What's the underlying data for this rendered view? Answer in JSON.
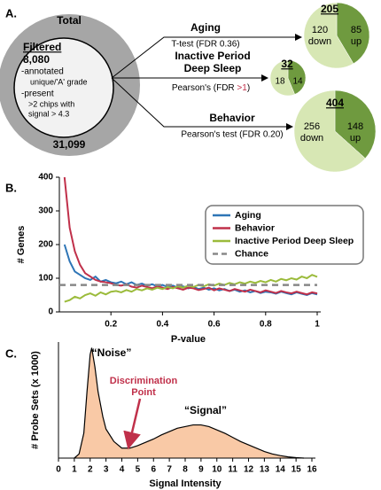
{
  "panel_labels": [
    "A.",
    "B.",
    "C."
  ],
  "diagram": {
    "total": {
      "title": "Total",
      "count": "31,099"
    },
    "filtered": {
      "title": "Filtered",
      "count": "8,080",
      "lines": [
        "-annotated",
        "unique/'A' grade",
        "-present",
        ">2 chips with",
        "signal > 4.3"
      ]
    },
    "tests": [
      {
        "name": [
          "Aging"
        ],
        "method": [
          "T-test (FDR 0.36)"
        ]
      },
      {
        "name": [
          "Inactive Period",
          "Deep Sleep"
        ],
        "method": [
          "Pearson's  (FDR ",
          ">1",
          ")"
        ]
      },
      {
        "name": [
          "Behavior"
        ],
        "method": [
          "Pearson's test (FDR 0.20)"
        ]
      }
    ]
  },
  "chart_data": [
    {
      "type": "pie",
      "title": "205",
      "categories": [
        "down",
        "up"
      ],
      "values": [
        120,
        85
      ],
      "colors": [
        "#d7e7b4",
        "#6f9a3f"
      ]
    },
    {
      "type": "pie",
      "title": "32",
      "values": [
        18,
        14
      ],
      "colors": [
        "#d7e7b4",
        "#6f9a3f"
      ]
    },
    {
      "type": "pie",
      "title": "404",
      "categories": [
        "down",
        "up"
      ],
      "values": [
        256,
        148
      ],
      "colors": [
        "#d7e7b4",
        "#6f9a3f"
      ]
    },
    {
      "type": "line",
      "xlabel": "P-value",
      "ylabel": "# Genes",
      "x": [
        0.02,
        0.04,
        0.06,
        0.08,
        0.1,
        0.12,
        0.14,
        0.16,
        0.18,
        0.2,
        0.22,
        0.24,
        0.26,
        0.28,
        0.3,
        0.32,
        0.34,
        0.36,
        0.38,
        0.4,
        0.42,
        0.44,
        0.46,
        0.48,
        0.5,
        0.52,
        0.54,
        0.56,
        0.58,
        0.6,
        0.62,
        0.64,
        0.66,
        0.68,
        0.7,
        0.72,
        0.74,
        0.76,
        0.78,
        0.8,
        0.82,
        0.84,
        0.86,
        0.88,
        0.9,
        0.92,
        0.94,
        0.96,
        0.98,
        1.0
      ],
      "xlim": [
        0,
        1
      ],
      "xticks": [
        0.2,
        0.4,
        0.6,
        0.8,
        1
      ],
      "ylim": [
        0,
        400
      ],
      "yticks": [
        0,
        100,
        200,
        300,
        400
      ],
      "legend": "upper right",
      "series": [
        {
          "name": "Aging",
          "color": "#2e75b6",
          "values": [
            200,
            150,
            120,
            110,
            100,
            95,
            105,
            90,
            95,
            88,
            85,
            90,
            82,
            88,
            80,
            84,
            78,
            82,
            76,
            80,
            74,
            78,
            72,
            76,
            70,
            74,
            68,
            72,
            66,
            70,
            64,
            68,
            62,
            66,
            60,
            64,
            58,
            62,
            56,
            60,
            58,
            54,
            60,
            56,
            52,
            58,
            54,
            50,
            56,
            52
          ]
        },
        {
          "name": "Behavior",
          "color": "#c0304a",
          "values": [
            400,
            250,
            180,
            140,
            115,
            105,
            95,
            90,
            88,
            85,
            80,
            78,
            82,
            75,
            72,
            78,
            74,
            70,
            76,
            72,
            68,
            74,
            70,
            66,
            72,
            70,
            65,
            68,
            72,
            64,
            70,
            66,
            62,
            68,
            64,
            60,
            66,
            62,
            58,
            64,
            60,
            56,
            62,
            58,
            55,
            60,
            56,
            52,
            58,
            55
          ]
        },
        {
          "name": "Inactive Period Deep Sleep",
          "color": "#9bbb3b",
          "values": [
            30,
            35,
            45,
            40,
            50,
            55,
            48,
            58,
            52,
            60,
            62,
            58,
            65,
            60,
            68,
            64,
            70,
            66,
            72,
            68,
            74,
            70,
            76,
            72,
            78,
            74,
            80,
            76,
            82,
            78,
            84,
            80,
            86,
            82,
            88,
            84,
            90,
            86,
            92,
            88,
            95,
            90,
            98,
            94,
            100,
            96,
            105,
            100,
            110,
            104
          ]
        },
        {
          "name": "Chance",
          "color": "#888888",
          "dashed": true,
          "x": [
            0,
            1
          ],
          "values": [
            80,
            80
          ]
        }
      ]
    },
    {
      "type": "area",
      "xlabel": "Signal Intensity",
      "ylabel": "# Probe Sets (x 1000)",
      "x": [
        1.0,
        1.3,
        1.6,
        1.8,
        2.0,
        2.1,
        2.3,
        2.5,
        2.8,
        3.0,
        3.5,
        4.0,
        4.5,
        5.0,
        5.5,
        6.0,
        6.5,
        7.0,
        7.5,
        8.0,
        8.5,
        9.0,
        9.5,
        10.0,
        10.5,
        11.0,
        11.5,
        12.0,
        12.5,
        13.0,
        13.5,
        14.0,
        14.5,
        15.0,
        15.5
      ],
      "values": [
        0,
        0.5,
        3,
        8,
        12.5,
        13.3,
        11,
        8,
        5,
        3.5,
        2,
        1.2,
        1.2,
        1.5,
        1.9,
        2.3,
        2.8,
        3.2,
        3.6,
        3.8,
        4.0,
        4.0,
        3.8,
        3.4,
        3.0,
        2.5,
        2.0,
        1.6,
        1.2,
        0.8,
        0.5,
        0.3,
        0.15,
        0.05,
        0
      ],
      "xlim": [
        0,
        16
      ],
      "xticks": [
        0,
        1,
        2,
        3,
        4,
        5,
        6,
        7,
        8,
        9,
        10,
        11,
        12,
        13,
        14,
        15,
        16
      ],
      "ylim": [
        0,
        14
      ],
      "color": "#f9c9a6",
      "annotations": [
        "“Noise”",
        "“Signal”"
      ],
      "arrow_label": [
        "Discrimination",
        "Point"
      ]
    }
  ]
}
